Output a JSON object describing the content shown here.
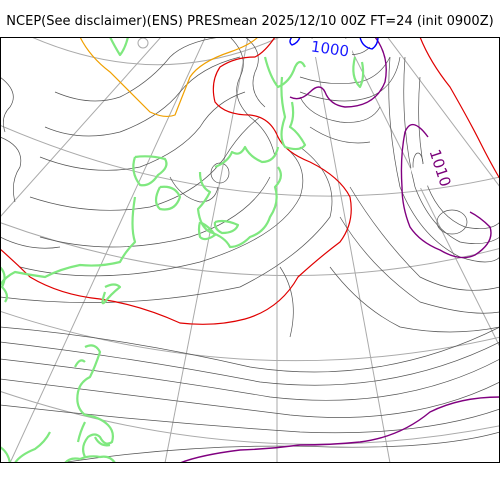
{
  "title": "NCEP(See disclaimer)(ENS) PRESmean 2025/12/10 00Z FT=24 (init 0900Z)",
  "contour_labels": [
    {
      "text": "1000",
      "color": "#1a1aff"
    },
    {
      "text": "1010",
      "color": "#7a007a"
    }
  ],
  "colors": {
    "background": "#ffffff",
    "graticule": "#aaaaaa",
    "isobar": "#555555",
    "coastline": "#7fe87f",
    "isobar_red": "#e00000",
    "isobar_purple": "#800080",
    "isobar_blue": "#0000ff",
    "isobar_orange": "#f0a000"
  }
}
